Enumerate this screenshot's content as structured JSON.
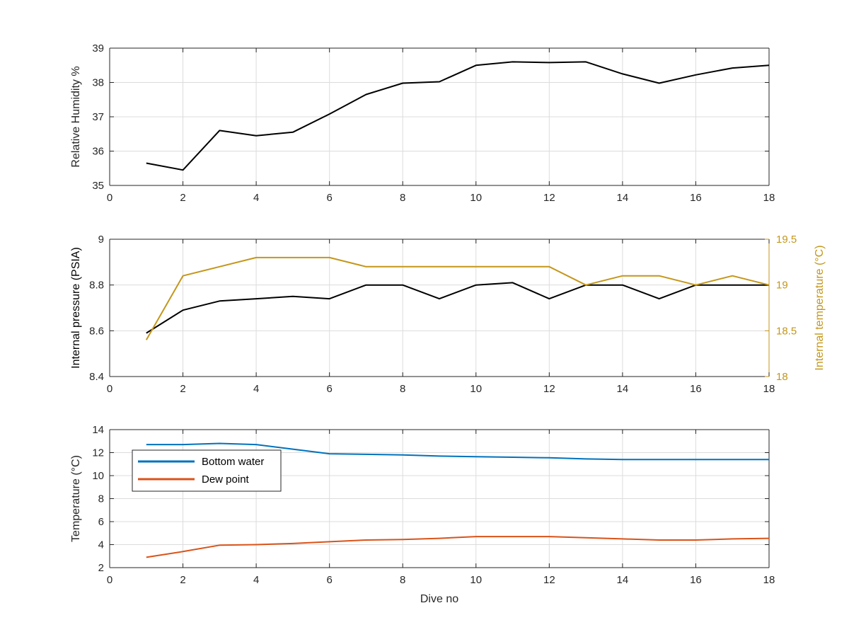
{
  "colors": {
    "rh": "#000000",
    "pressure": "#000000",
    "temperature": "#C4961A",
    "bottom_water": "#0072BD",
    "dew_point": "#D95319",
    "axis": "#262626",
    "grid": "#dcdcdc"
  },
  "chart_data": [
    {
      "type": "line",
      "title": "",
      "xlabel": "",
      "ylabel": "Relative Humidity %",
      "xlim": [
        0,
        18
      ],
      "ylim": [
        35,
        39
      ],
      "xticks": [
        0,
        2,
        4,
        6,
        8,
        10,
        12,
        14,
        16,
        18
      ],
      "yticks": [
        35,
        36,
        37,
        38,
        39
      ],
      "grid": true,
      "series": [
        {
          "color": "#000000",
          "x": [
            1,
            2,
            3,
            4,
            5,
            6,
            7,
            8,
            9,
            10,
            11,
            12,
            13,
            14,
            15,
            16,
            17,
            18
          ],
          "values": [
            35.65,
            35.45,
            36.6,
            36.45,
            36.55,
            37.08,
            37.65,
            37.98,
            38.02,
            38.5,
            38.6,
            38.58,
            38.6,
            38.25,
            37.98,
            38.22,
            38.42,
            38.5
          ]
        }
      ]
    },
    {
      "type": "line",
      "title": "",
      "xlabel": "",
      "ylabel": "Internal pressure (PSIA)",
      "ylabel_right": "Internal temperature (°C)",
      "xlim": [
        0,
        18
      ],
      "ylim": [
        8.4,
        9
      ],
      "ylim_right": [
        18,
        19.5
      ],
      "xticks": [
        0,
        2,
        4,
        6,
        8,
        10,
        12,
        14,
        16,
        18
      ],
      "yticks": [
        "8.4",
        "8.6",
        "8.8",
        "9"
      ],
      "yticks_right": [
        "18",
        "18.5",
        "19",
        "19.5"
      ],
      "grid": true,
      "series": [
        {
          "axis": "left",
          "color": "#000000",
          "x": [
            1,
            2,
            3,
            4,
            5,
            6,
            7,
            8,
            9,
            10,
            11,
            12,
            13,
            14,
            15,
            16,
            17,
            18
          ],
          "values": [
            8.59,
            8.69,
            8.73,
            8.74,
            8.75,
            8.74,
            8.8,
            8.8,
            8.74,
            8.8,
            8.81,
            8.74,
            8.8,
            8.8,
            8.74,
            8.8,
            8.8,
            8.8
          ]
        },
        {
          "axis": "right",
          "color": "#C4961A",
          "x": [
            1,
            2,
            3,
            4,
            5,
            6,
            7,
            8,
            9,
            10,
            11,
            12,
            13,
            14,
            15,
            16,
            17,
            18
          ],
          "values": [
            18.4,
            19.1,
            19.2,
            19.3,
            19.3,
            19.3,
            19.2,
            19.2,
            19.2,
            19.2,
            19.2,
            19.2,
            19.0,
            19.1,
            19.1,
            19.0,
            19.1,
            19.0
          ]
        }
      ]
    },
    {
      "type": "line",
      "title": "",
      "xlabel": "Dive no",
      "ylabel": "Temperature (°C)",
      "xlim": [
        0,
        18
      ],
      "ylim": [
        2,
        14
      ],
      "xticks": [
        0,
        2,
        4,
        6,
        8,
        10,
        12,
        14,
        16,
        18
      ],
      "yticks": [
        2,
        4,
        6,
        8,
        10,
        12,
        14
      ],
      "grid": true,
      "legend_position": "top-left",
      "series": [
        {
          "name": "Bottom water",
          "color": "#0072BD",
          "x": [
            1,
            2,
            3,
            4,
            5,
            6,
            7,
            8,
            9,
            10,
            11,
            12,
            13,
            14,
            15,
            16,
            17,
            18
          ],
          "values": [
            12.7,
            12.7,
            12.8,
            12.7,
            12.3,
            11.9,
            11.85,
            11.8,
            11.7,
            11.65,
            11.6,
            11.55,
            11.45,
            11.4,
            11.4,
            11.4,
            11.4,
            11.4
          ]
        },
        {
          "name": "Dew point",
          "color": "#D95319",
          "x": [
            1,
            2,
            3,
            4,
            5,
            6,
            7,
            8,
            9,
            10,
            11,
            12,
            13,
            14,
            15,
            16,
            17,
            18
          ],
          "values": [
            2.9,
            3.4,
            3.95,
            4.0,
            4.1,
            4.25,
            4.4,
            4.45,
            4.55,
            4.7,
            4.7,
            4.7,
            4.6,
            4.5,
            4.4,
            4.4,
            4.5,
            4.55
          ]
        }
      ]
    }
  ]
}
